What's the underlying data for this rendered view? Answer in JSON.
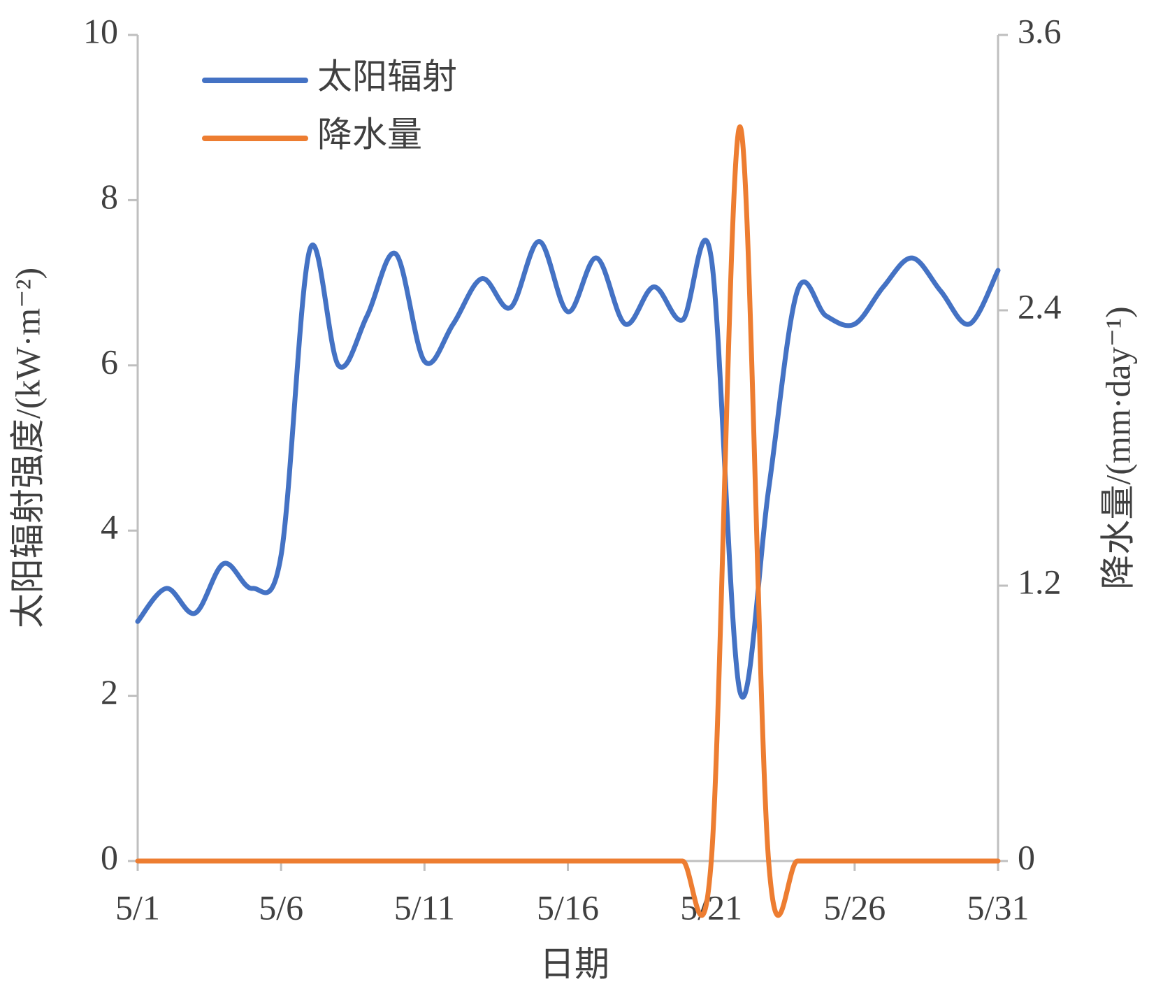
{
  "chart_data": {
    "type": "line",
    "x_label": "日期",
    "y_label": "太阳辐射强度/(kW·m⁻²)",
    "y2_label": "降水量/(mm·day⁻¹)",
    "categories": [
      "5/1",
      null,
      null,
      null,
      null,
      "5/6",
      null,
      null,
      null,
      null,
      "5/11",
      null,
      null,
      null,
      null,
      "5/16",
      null,
      null,
      null,
      null,
      "5/21",
      null,
      null,
      null,
      null,
      "5/26",
      null,
      null,
      null,
      null,
      "5/31"
    ],
    "series": [
      {
        "name": "太阳辐射",
        "color": "#4472c4",
        "values": [
          2.9,
          3.3,
          3.0,
          3.6,
          3.3,
          3.7,
          7.4,
          6.0,
          6.6,
          7.35,
          6.05,
          6.5,
          7.05,
          6.7,
          7.5,
          6.65,
          7.3,
          6.5,
          6.95,
          6.55,
          7.3,
          2.05,
          4.5,
          6.9,
          6.6,
          6.5,
          6.95,
          7.3,
          6.9,
          6.5,
          7.15
        ]
      },
      {
        "name": "降水量",
        "color": "#ed7d31",
        "axis": "y2",
        "values": [
          0,
          0,
          0,
          0,
          0,
          0,
          0,
          0,
          0,
          0,
          0,
          0,
          0,
          0,
          0,
          0,
          0,
          0,
          0,
          0,
          0,
          3.2,
          0,
          0,
          0,
          0,
          0,
          0,
          0,
          0,
          0
        ]
      }
    ],
    "ylim": [
      0,
      10
    ],
    "yticks": [
      0,
      2,
      4,
      6,
      8,
      10
    ],
    "y2lim": [
      0,
      3.6
    ],
    "y2ticks": [
      0,
      1.2,
      2.4,
      3.6
    ],
    "grid": false,
    "legend": "upper left"
  }
}
